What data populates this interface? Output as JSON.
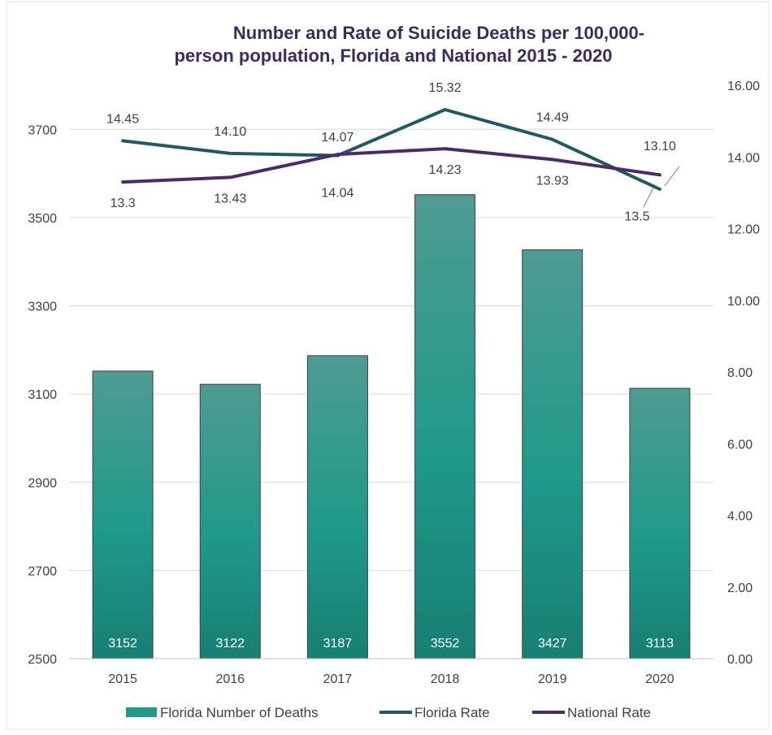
{
  "chart_data": {
    "type": "bar",
    "title_line1": "Number and Rate of Suicide Deaths per 100,000-",
    "title_line2": "person population, Florida and National 2015 - 2020",
    "categories": [
      "2015",
      "2016",
      "2017",
      "2018",
      "2019",
      "2020"
    ],
    "y_left": {
      "min": 2500,
      "max": 3800,
      "ticks": [
        2500,
        2700,
        2900,
        3100,
        3300,
        3500,
        3700
      ]
    },
    "y_right": {
      "min": 0,
      "max": 16,
      "ticks": [
        "0.00",
        "2.00",
        "4.00",
        "6.00",
        "8.00",
        "10.00",
        "12.00",
        "14.00",
        "16.00"
      ]
    },
    "grid": true,
    "legend_position": "bottom",
    "series": [
      {
        "name": "Florida Number of Deaths",
        "type": "bar",
        "axis": "left",
        "color": "#1f9a8a",
        "values": [
          3152,
          3122,
          3187,
          3552,
          3427,
          3113
        ],
        "labels": [
          "3152",
          "3122",
          "3187",
          "3552",
          "3427",
          "3113"
        ]
      },
      {
        "name": "Florida Rate",
        "type": "line",
        "axis": "right",
        "color": "#1d5a63",
        "values": [
          14.45,
          14.1,
          14.04,
          15.32,
          14.49,
          13.1
        ],
        "labels": [
          "14.45",
          "14.10",
          "14.04",
          "15.32",
          "14.49",
          "13.10"
        ]
      },
      {
        "name": "National Rate",
        "type": "line",
        "axis": "right",
        "color": "#4b2a6b",
        "values": [
          13.3,
          13.43,
          14.07,
          14.23,
          13.93,
          13.5
        ],
        "labels": [
          "13.3",
          "13.43",
          "14.07",
          "14.23",
          "13.93",
          "13.5"
        ]
      }
    ]
  }
}
